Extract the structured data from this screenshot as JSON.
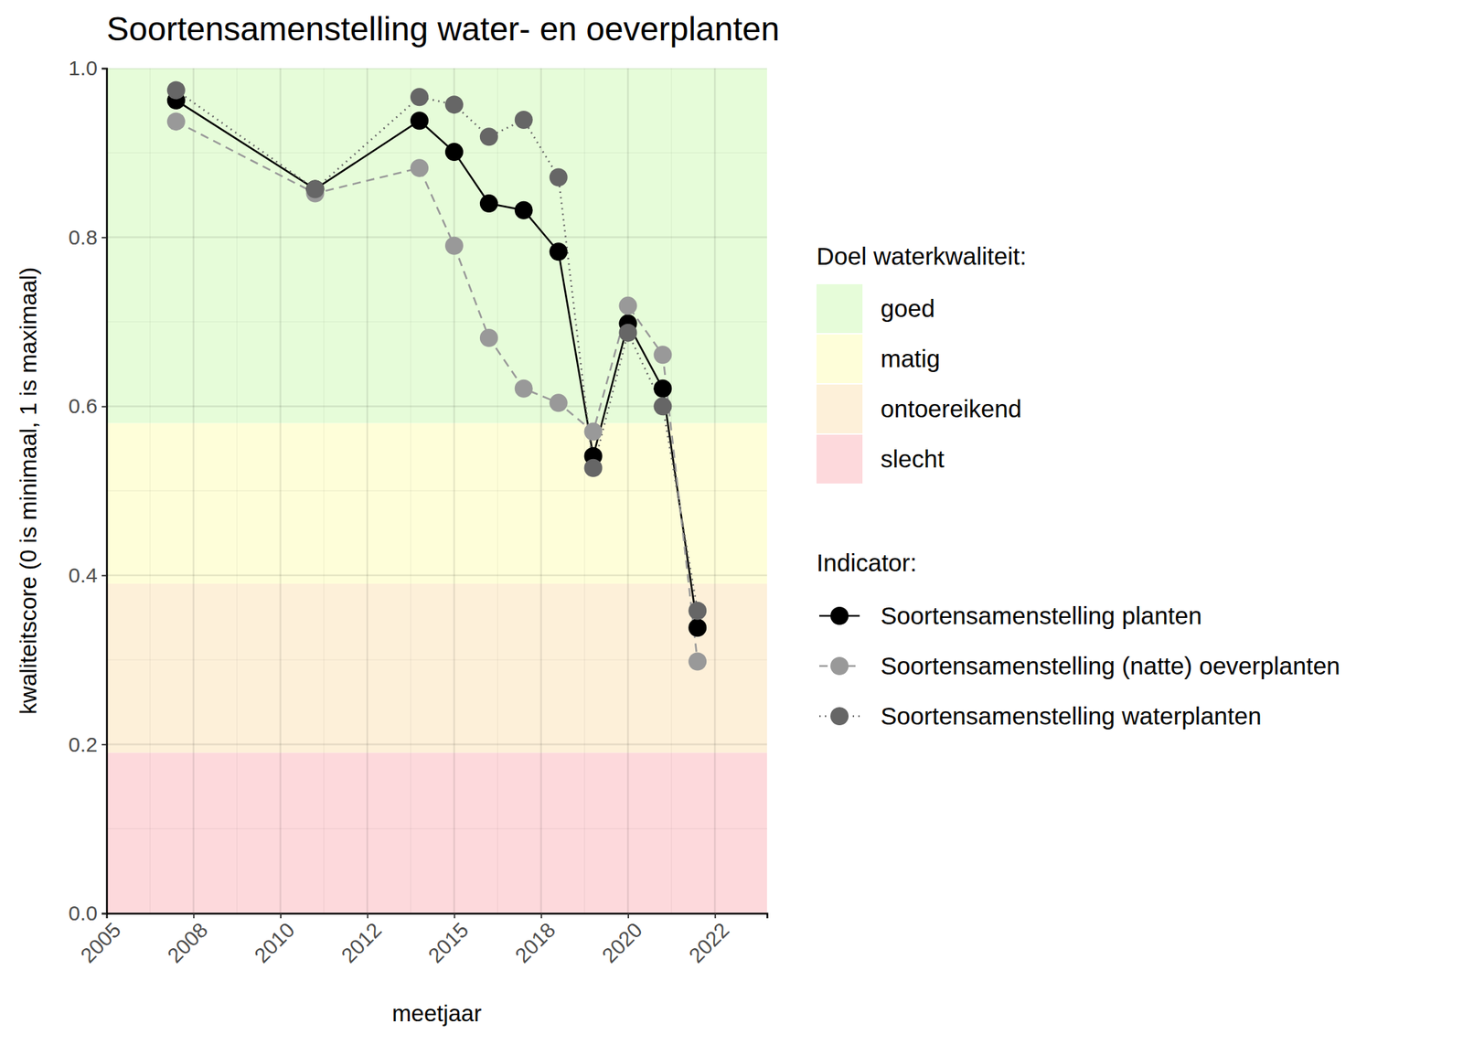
{
  "chart_data": {
    "type": "line",
    "title": "Soortensamenstelling water- en oeverplanten",
    "x_label": "meetjaar",
    "y_label": "kwaliteitscore (0 is minimaal, 1 is maximaal)",
    "x": [
      2007,
      2011,
      2014,
      2015,
      2016,
      2017,
      2018,
      2019,
      2020,
      2021,
      2022
    ],
    "series": [
      {
        "name": "Soortensamenstelling planten",
        "color": "#000000",
        "line_style": "solid",
        "marker": "circle",
        "values": [
          0.962,
          0.857,
          0.938,
          0.901,
          0.84,
          0.832,
          0.783,
          0.541,
          0.698,
          0.621,
          0.338
        ]
      },
      {
        "name": "Soortensamenstelling (natte) oeverplanten",
        "color": "#999999",
        "line_style": "dashed",
        "marker": "circle",
        "values": [
          0.937,
          0.852,
          0.882,
          0.79,
          0.681,
          0.621,
          0.604,
          0.57,
          0.719,
          0.661,
          0.298
        ]
      },
      {
        "name": "Soortensamenstelling waterplanten",
        "color": "#666666",
        "line_style": "dotted",
        "marker": "circle",
        "values": [
          0.974,
          0.857,
          0.966,
          0.957,
          0.919,
          0.939,
          0.871,
          0.527,
          0.687,
          0.6,
          0.358
        ]
      }
    ],
    "bands_title": "Doel waterkwaliteit:",
    "bands": [
      {
        "name": "goed",
        "color": "#e6fcd9",
        "from": 0.58,
        "to": 1.0
      },
      {
        "name": "matig",
        "color": "#fefed9",
        "from": 0.39,
        "to": 0.58
      },
      {
        "name": "ontoereikend",
        "color": "#fdf0d9",
        "from": 0.19,
        "to": 0.39
      },
      {
        "name": "slecht",
        "color": "#fdd9dc",
        "from": 0.0,
        "to": 0.19
      }
    ],
    "legend_title": "Indicator:",
    "xlim": [
      2005,
      2024
    ],
    "ylim": [
      0,
      1
    ],
    "xticks": [
      2005,
      {
        "value": 2007.5,
        "label": "2008"
      },
      2010,
      {
        "value": 2012.5,
        "label": "2012"
      },
      2015,
      {
        "value": 2017.5,
        "label": "2018"
      },
      2020,
      {
        "value": 2022.5,
        "label": "2022"
      }
    ],
    "yticks": [
      {
        "value": 0,
        "label": "0.0"
      },
      {
        "value": 0.2,
        "label": "0.2"
      },
      {
        "value": 0.4,
        "label": "0.4"
      },
      {
        "value": 0.6,
        "label": "0.6"
      },
      {
        "value": 0.8,
        "label": "0.8"
      },
      {
        "value": 1,
        "label": "1.0"
      }
    ],
    "grid": true,
    "legend": "right"
  }
}
